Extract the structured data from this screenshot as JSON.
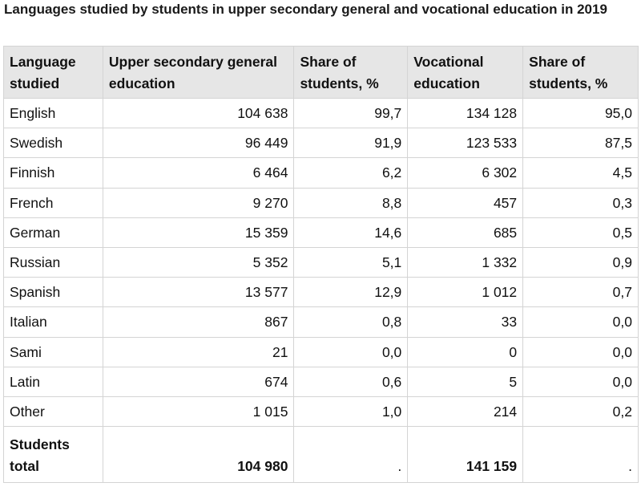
{
  "caption": "Languages studied by students in upper secondary general and vocational education in 2019",
  "table": {
    "headers": [
      "Language studied",
      "Upper secondary general education",
      "Share of students, %",
      "Vocational education",
      "Share of students, %"
    ],
    "rows": [
      {
        "language": "English",
        "general": "104 638",
        "general_share": "99,7",
        "vocational": "134 128",
        "vocational_share": "95,0"
      },
      {
        "language": "Swedish",
        "general": "96 449",
        "general_share": "91,9",
        "vocational": "123 533",
        "vocational_share": "87,5"
      },
      {
        "language": "Finnish",
        "general": "6 464",
        "general_share": "6,2",
        "vocational": "6 302",
        "vocational_share": "4,5"
      },
      {
        "language": "French",
        "general": "9 270",
        "general_share": "8,8",
        "vocational": "457",
        "vocational_share": "0,3"
      },
      {
        "language": "German",
        "general": "15 359",
        "general_share": "14,6",
        "vocational": "685",
        "vocational_share": "0,5"
      },
      {
        "language": "Russian",
        "general": "5 352",
        "general_share": "5,1",
        "vocational": "1 332",
        "vocational_share": "0,9"
      },
      {
        "language": "Spanish",
        "general": "13 577",
        "general_share": "12,9",
        "vocational": "1 012",
        "vocational_share": "0,7"
      },
      {
        "language": "Italian",
        "general": "867",
        "general_share": "0,8",
        "vocational": "33",
        "vocational_share": "0,0"
      },
      {
        "language": "Sami",
        "general": "21",
        "general_share": "0,0",
        "vocational": "0",
        "vocational_share": "0,0"
      },
      {
        "language": "Latin",
        "general": "674",
        "general_share": "0,6",
        "vocational": "5",
        "vocational_share": "0,0"
      },
      {
        "language": "Other",
        "general": "1 015",
        "general_share": "1,0",
        "vocational": "214",
        "vocational_share": "0,2"
      }
    ],
    "total": {
      "label": "Students total",
      "general": "104 980",
      "general_share": ".",
      "vocational": "141 159",
      "vocational_share": "."
    }
  },
  "colors": {
    "header_bg": "#e6e6e6",
    "border": "#d4d4d4",
    "text": "#111111"
  }
}
